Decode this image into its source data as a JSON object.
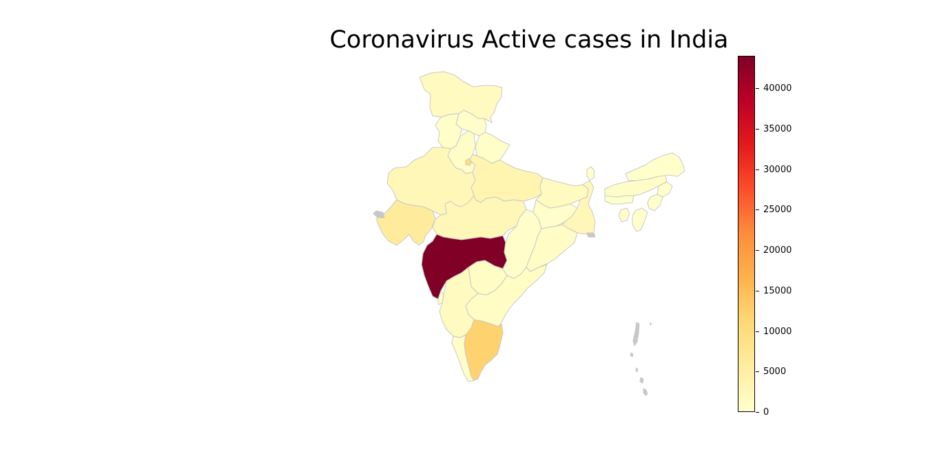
{
  "title": "Coronavirus Active cases in India",
  "colorbar": {
    "min": 0,
    "max": 44000,
    "colormap": "YlOrRd",
    "ticks": [
      {
        "value": 0,
        "label": "0"
      },
      {
        "value": 5000,
        "label": "5000"
      },
      {
        "value": 10000,
        "label": "10000"
      },
      {
        "value": 15000,
        "label": "15000"
      },
      {
        "value": 20000,
        "label": "20000"
      },
      {
        "value": 25000,
        "label": "25000"
      },
      {
        "value": 30000,
        "label": "30000"
      },
      {
        "value": 35000,
        "label": "35000"
      },
      {
        "value": 40000,
        "label": "40000"
      }
    ],
    "stops": [
      "#ffffcc",
      "#ffeda0",
      "#fed976",
      "#feb24c",
      "#fd8d3c",
      "#fc4e2a",
      "#e31a1c",
      "#bd0026",
      "#800026"
    ]
  },
  "map": {
    "border_color": "#c8c8c8",
    "no_data_color": "#c8c8c8",
    "regions": [
      {
        "name": "Jammu and Kashmir",
        "value": 1500
      },
      {
        "name": "Himachal Pradesh",
        "value": 200
      },
      {
        "name": "Punjab",
        "value": 500
      },
      {
        "name": "Uttarakhand",
        "value": 500
      },
      {
        "name": "Haryana",
        "value": 600
      },
      {
        "name": "Delhi",
        "value": 10000
      },
      {
        "name": "Rajasthan",
        "value": 2500
      },
      {
        "name": "Uttar Pradesh",
        "value": 3500
      },
      {
        "name": "Bihar",
        "value": 1500
      },
      {
        "name": "Gujarat",
        "value": 6000
      },
      {
        "name": "Madhya Pradesh",
        "value": 2500
      },
      {
        "name": "Maharashtra",
        "value": 44000
      },
      {
        "name": "Chhattisgarh",
        "value": 300
      },
      {
        "name": "Jharkhand",
        "value": 300
      },
      {
        "name": "West Bengal",
        "value": 2500
      },
      {
        "name": "Odisha",
        "value": 800
      },
      {
        "name": "Telangana",
        "value": 1000
      },
      {
        "name": "Andhra Pradesh",
        "value": 1000
      },
      {
        "name": "Karnataka",
        "value": 1500
      },
      {
        "name": "Goa",
        "value": 200
      },
      {
        "name": "Kerala",
        "value": 500
      },
      {
        "name": "Tamil Nadu",
        "value": 12000
      },
      {
        "name": "Sikkim",
        "value": 0
      },
      {
        "name": "Assam",
        "value": 600
      },
      {
        "name": "Arunachal Pradesh",
        "value": 0
      },
      {
        "name": "Nagaland",
        "value": 0
      },
      {
        "name": "Manipur",
        "value": 50
      },
      {
        "name": "Mizoram",
        "value": 0
      },
      {
        "name": "Tripura",
        "value": 200
      },
      {
        "name": "Meghalaya",
        "value": 0
      },
      {
        "name": "Andaman and Nicobar",
        "value": null
      },
      {
        "name": "Gujarat coast",
        "value": null
      },
      {
        "name": "Sundarbans",
        "value": null
      }
    ]
  }
}
